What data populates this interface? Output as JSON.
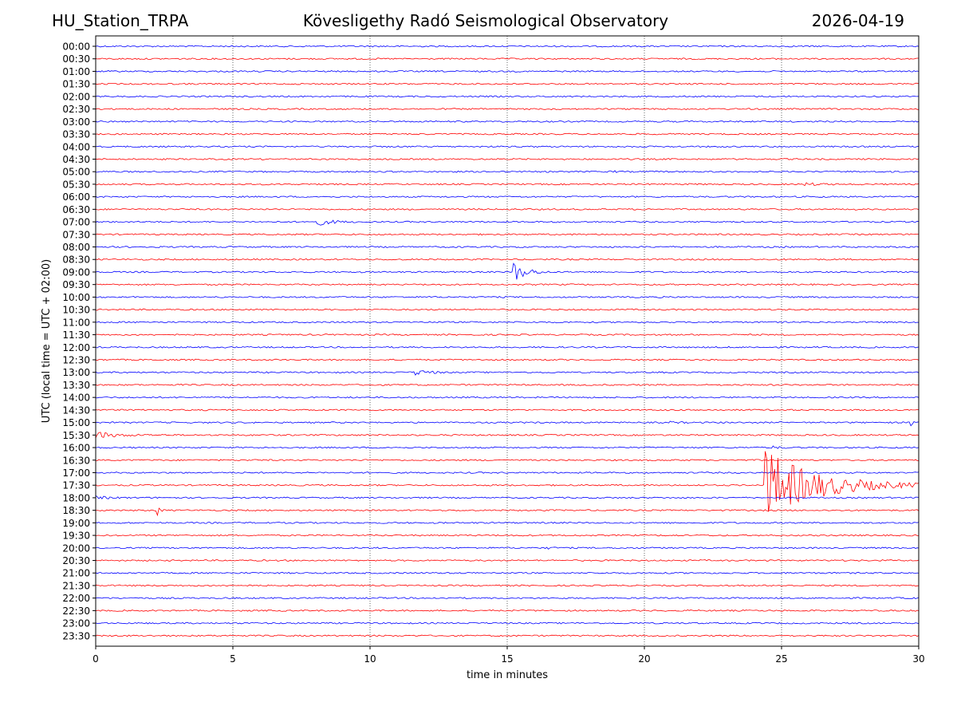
{
  "header": {
    "station": "HU_Station_TRPA",
    "observatory": "Kövesligethy Radó Seismological Observatory",
    "date": "2026-04-19"
  },
  "chart_data": {
    "type": "line",
    "title": "Kövesligethy Radó Seismological Observatory",
    "xlabel": "time in minutes",
    "ylabel": "UTC (local time = UTC + 02:00)",
    "xlim": [
      0,
      30
    ],
    "x_ticks": [
      0,
      5,
      10,
      15,
      20,
      25,
      30
    ],
    "vertical_gridlines": [
      5,
      10,
      15,
      20,
      25
    ],
    "grid": "vertical dotted",
    "colors": {
      "even_row": "#0000ff",
      "odd_row": "#ff0000",
      "grid": "#000000"
    },
    "rows": [
      "00:00",
      "00:30",
      "01:00",
      "01:30",
      "02:00",
      "02:30",
      "03:00",
      "03:30",
      "04:00",
      "04:30",
      "05:00",
      "05:30",
      "06:00",
      "06:30",
      "07:00",
      "07:30",
      "08:00",
      "08:30",
      "09:00",
      "09:30",
      "10:00",
      "10:30",
      "11:00",
      "11:30",
      "12:00",
      "12:30",
      "13:00",
      "13:30",
      "14:00",
      "14:30",
      "15:00",
      "15:30",
      "16:00",
      "16:30",
      "17:00",
      "17:30",
      "18:00",
      "18:30",
      "19:00",
      "19:30",
      "20:00",
      "20:30",
      "21:00",
      "21:30",
      "22:00",
      "22:30",
      "23:00",
      "23:30"
    ],
    "events": [
      {
        "row": "05:00",
        "t_start": 18.7,
        "duration": 0.6,
        "amplitude": 0.15
      },
      {
        "row": "05:30",
        "t_start": 25.8,
        "duration": 1.4,
        "amplitude": 0.22
      },
      {
        "row": "07:00",
        "t_start": 7.95,
        "duration": 1.6,
        "amplitude": 0.55
      },
      {
        "row": "09:00",
        "t_start": 15.2,
        "duration": 1.3,
        "amplitude": 1.5
      },
      {
        "row": "12:00",
        "t_start": 22.8,
        "duration": 0.4,
        "amplitude": 0.15
      },
      {
        "row": "13:00",
        "t_start": 11.6,
        "duration": 1.3,
        "amplitude": 0.5
      },
      {
        "row": "15:00",
        "t_start": 29.6,
        "duration": 0.4,
        "amplitude": 1.0
      },
      {
        "row": "15:00",
        "t_start": 20.9,
        "duration": 0.8,
        "amplitude": 0.12
      },
      {
        "row": "15:30",
        "t_start": 0.0,
        "duration": 2.2,
        "amplitude": 0.45
      },
      {
        "row": "16:00",
        "t_start": 24.6,
        "duration": 0.9,
        "amplitude": 0.2
      },
      {
        "row": "17:30",
        "t_start": 24.4,
        "duration": 5.6,
        "amplitude": 4.8
      },
      {
        "row": "18:00",
        "t_start": 0.0,
        "duration": 1.3,
        "amplitude": 0.2
      },
      {
        "row": "18:30",
        "t_start": 2.25,
        "duration": 0.3,
        "amplitude": 0.6
      },
      {
        "row": "20:00",
        "t_start": 16.4,
        "duration": 0.8,
        "amplitude": 0.12
      }
    ]
  }
}
